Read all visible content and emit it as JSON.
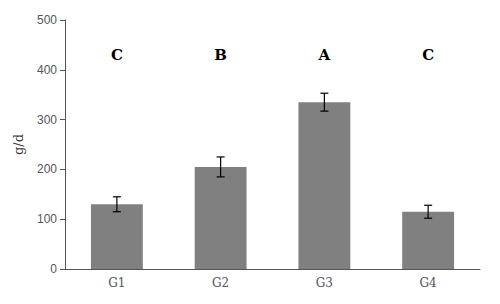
{
  "chart_data": {
    "type": "bar",
    "categories": [
      "G1",
      "G2",
      "G3",
      "G4"
    ],
    "values": [
      130,
      205,
      335,
      115
    ],
    "errors": [
      15,
      20,
      18,
      13
    ],
    "color": "#808080",
    "ylabel": "g/d",
    "ylim": [
      0,
      500
    ],
    "yticks": [
      0,
      100,
      200,
      300,
      400,
      500
    ],
    "grid": false,
    "annotations": [
      {
        "text": "C",
        "x": "G1",
        "y": 430
      },
      {
        "text": "B",
        "x": "G2",
        "y": 430
      },
      {
        "text": "A",
        "x": "G3",
        "y": 430
      },
      {
        "text": "C",
        "x": "G4",
        "y": 430
      }
    ]
  }
}
